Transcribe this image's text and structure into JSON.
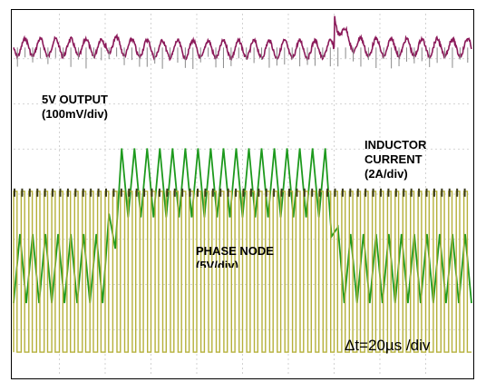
{
  "chart_data": {
    "type": "line",
    "title": "",
    "grid": true,
    "grid_divisions": {
      "horizontal": 10,
      "vertical": 8
    },
    "channels": [
      {
        "name": "5V OUTPUT",
        "scale": "(100mV/div)",
        "color": "#8b1a5a",
        "waveform": "ripple",
        "ripple_cycles": 30,
        "ripple_amplitude_div": 0.12,
        "load_step_x_div": [
          2.0,
          7.0
        ],
        "dip_div": -0.15,
        "overshoot_div": 0.35
      },
      {
        "name": "INDUCTOR CURRENT",
        "scale": "(2A/div)",
        "color": "#1e9a1e",
        "waveform": "triangle",
        "cycles": 36,
        "ripple_amplitude_div": 0.45,
        "low_level_div": 0.0,
        "high_level_div": 1.9,
        "load_step_x_div": [
          2.0,
          7.0
        ]
      },
      {
        "name": "PHASE NODE",
        "scale": "(5V/div)",
        "color": "#b5b03a",
        "waveform": "square",
        "cycles": 60,
        "duty_light_load": 0.45,
        "duty_heavy_load": 0.55,
        "amplitude_div": 2.3,
        "load_step_x_div": [
          2.0,
          7.0
        ]
      }
    ],
    "timebase": "Δt=20µs /div"
  },
  "labels": {
    "output_line1": "5V OUTPUT",
    "output_line2": "(100mV/div)",
    "inductor_line1": "INDUCTOR",
    "inductor_line2": "CURRENT",
    "inductor_line3": "(2A/div)",
    "phase_line1": "PHASE NODE",
    "phase_line2": "(5V/div)",
    "timebase": "Δt=20µs /div"
  }
}
